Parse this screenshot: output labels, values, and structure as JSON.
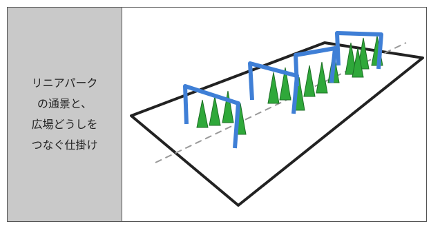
{
  "cell": {
    "lines": [
      "リニアパーク",
      "の通景と、",
      "広場どうしを",
      "つなぐ仕掛け"
    ]
  }
}
